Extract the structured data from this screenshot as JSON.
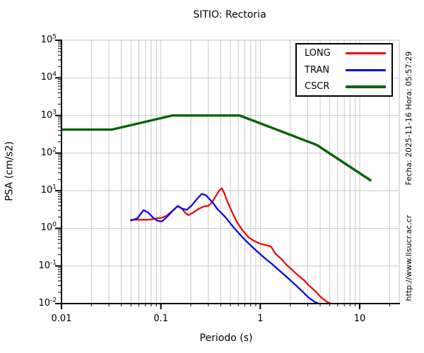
{
  "title": "SITIO: Rectoria",
  "side_texts": {
    "fecha": "Fecha: 2025-11-16 Hora: 05:57:29",
    "url": "http://www.lisucr.ac.cr"
  },
  "colors": {
    "grid": "#c8c8c8",
    "frame_secondary": "#c0c0c0",
    "axis": "#000000",
    "background": "#ffffff"
  },
  "chart_data": {
    "type": "line",
    "title": "SITIO: Rectoria",
    "xlabel": "Periodo (s)",
    "ylabel": "PSA (cm/s2)",
    "xscale": "log",
    "yscale": "log",
    "xlim": [
      0.01,
      25
    ],
    "ylim": [
      0.01,
      100000
    ],
    "grid": "x: major+minor log gridlines, y: major decade gridlines",
    "legend_position": "top-right",
    "x_ticks": [
      {
        "value": 0.01,
        "label": "0.01"
      },
      {
        "value": 0.1,
        "label": "0.1"
      },
      {
        "value": 1,
        "label": "1"
      },
      {
        "value": 10,
        "label": "10"
      }
    ],
    "y_ticks": [
      {
        "value": 100000,
        "base": "10",
        "exp": "5"
      },
      {
        "value": 10000,
        "base": "10",
        "exp": "4"
      },
      {
        "value": 1000,
        "base": "10",
        "exp": "3"
      },
      {
        "value": 100,
        "base": "10",
        "exp": "2"
      },
      {
        "value": 10,
        "base": "10",
        "exp": "1"
      },
      {
        "value": 1,
        "base": "10",
        "exp": "0"
      },
      {
        "value": 0.1,
        "base": "10",
        "exp": "-1"
      },
      {
        "value": 0.01,
        "base": "10",
        "exp": "-2"
      }
    ],
    "series": [
      {
        "name": "LONG",
        "color": "#ee0000",
        "width": 2.2,
        "points": [
          [
            0.05,
            1.68
          ],
          [
            0.062,
            1.7
          ],
          [
            0.072,
            1.68
          ],
          [
            0.082,
            1.74
          ],
          [
            0.092,
            1.85
          ],
          [
            0.103,
            1.92
          ],
          [
            0.115,
            2.2
          ],
          [
            0.13,
            2.9
          ],
          [
            0.148,
            3.95
          ],
          [
            0.162,
            3.4
          ],
          [
            0.175,
            2.6
          ],
          [
            0.19,
            2.25
          ],
          [
            0.21,
            2.6
          ],
          [
            0.24,
            3.3
          ],
          [
            0.27,
            3.8
          ],
          [
            0.3,
            3.95
          ],
          [
            0.325,
            4.8
          ],
          [
            0.355,
            7.0
          ],
          [
            0.385,
            10.0
          ],
          [
            0.41,
            11.6
          ],
          [
            0.435,
            8.5
          ],
          [
            0.465,
            5.3
          ],
          [
            0.52,
            2.7
          ],
          [
            0.58,
            1.5
          ],
          [
            0.66,
            0.9
          ],
          [
            0.76,
            0.58
          ],
          [
            0.87,
            0.46
          ],
          [
            1.0,
            0.39
          ],
          [
            1.15,
            0.355
          ],
          [
            1.28,
            0.33
          ],
          [
            1.42,
            0.21
          ],
          [
            1.6,
            0.16
          ],
          [
            1.85,
            0.105
          ],
          [
            2.1,
            0.078
          ],
          [
            2.4,
            0.056
          ],
          [
            2.75,
            0.042
          ],
          [
            3.1,
            0.03
          ],
          [
            3.6,
            0.021
          ],
          [
            4.1,
            0.0145
          ],
          [
            4.6,
            0.0115
          ],
          [
            5.1,
            0.01
          ]
        ]
      },
      {
        "name": "TRAN",
        "color": "#0000ee",
        "width": 2.2,
        "points": [
          [
            0.05,
            1.62
          ],
          [
            0.058,
            1.85
          ],
          [
            0.067,
            3.05
          ],
          [
            0.075,
            2.6
          ],
          [
            0.083,
            1.95
          ],
          [
            0.092,
            1.6
          ],
          [
            0.102,
            1.52
          ],
          [
            0.115,
            2.0
          ],
          [
            0.13,
            2.85
          ],
          [
            0.148,
            3.9
          ],
          [
            0.163,
            3.35
          ],
          [
            0.182,
            3.1
          ],
          [
            0.205,
            4.1
          ],
          [
            0.23,
            6.0
          ],
          [
            0.258,
            8.3
          ],
          [
            0.285,
            7.5
          ],
          [
            0.31,
            5.9
          ],
          [
            0.34,
            4.5
          ],
          [
            0.37,
            3.25
          ],
          [
            0.4,
            2.65
          ],
          [
            0.44,
            2.05
          ],
          [
            0.48,
            1.55
          ],
          [
            0.54,
            1.05
          ],
          [
            0.62,
            0.7
          ],
          [
            0.72,
            0.46
          ],
          [
            0.84,
            0.31
          ],
          [
            0.98,
            0.215
          ],
          [
            1.13,
            0.155
          ],
          [
            1.3,
            0.115
          ],
          [
            1.5,
            0.082
          ],
          [
            1.72,
            0.06
          ],
          [
            2.0,
            0.042
          ],
          [
            2.3,
            0.03
          ],
          [
            2.65,
            0.021
          ],
          [
            3.05,
            0.0145
          ],
          [
            3.5,
            0.0112
          ],
          [
            3.85,
            0.01
          ]
        ]
      },
      {
        "name": "CSCR",
        "color": "#006400",
        "width": 3.4,
        "points": [
          [
            0.01,
            420
          ],
          [
            0.032,
            420
          ],
          [
            0.13,
            1000
          ],
          [
            0.62,
            1000
          ],
          [
            3.7,
            165
          ],
          [
            12.8,
            19
          ]
        ]
      }
    ]
  }
}
